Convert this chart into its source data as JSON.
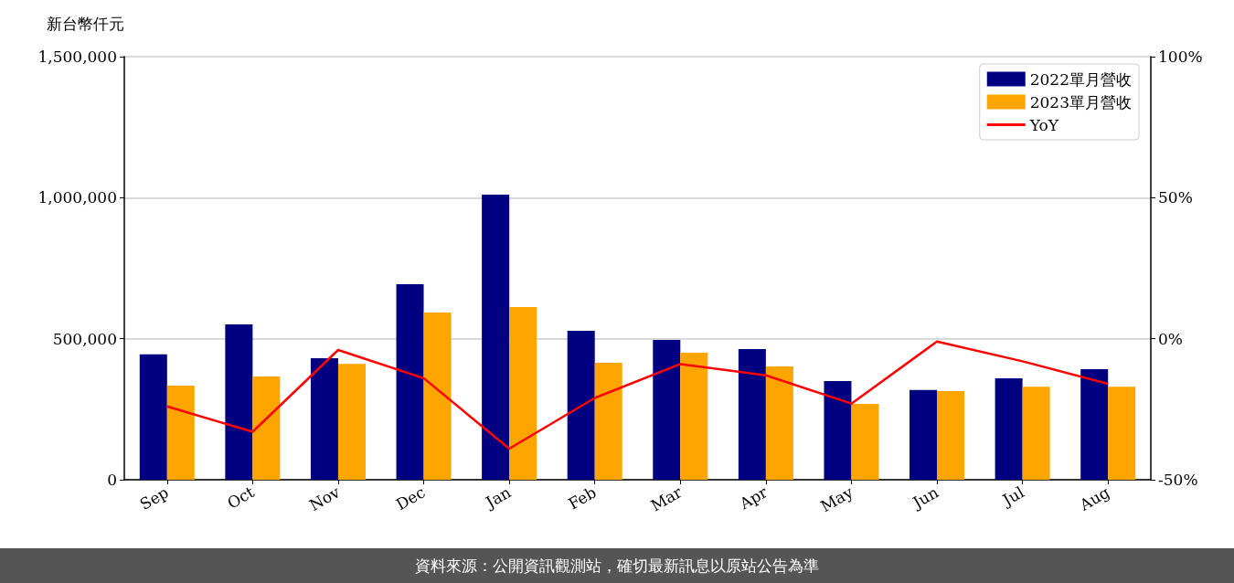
{
  "chart_data": {
    "type": "bar",
    "ylabel": "新台幣仟元",
    "categories": [
      "Sep",
      "Oct",
      "Nov",
      "Dec",
      "Jan",
      "Feb",
      "Mar",
      "Apr",
      "May",
      "Jun",
      "Jul",
      "Aug"
    ],
    "series": [
      {
        "name": "2022單月營收",
        "color": "#000080",
        "values": [
          445000,
          551000,
          431000,
          693000,
          1011000,
          528000,
          496000,
          463000,
          350000,
          318000,
          360000,
          392000
        ]
      },
      {
        "name": "2023單月營收",
        "color": "#ffa500",
        "values": [
          334000,
          366000,
          411000,
          593000,
          612000,
          415000,
          450000,
          402000,
          269000,
          314000,
          330000,
          330000
        ]
      },
      {
        "name": "YoY",
        "type": "line",
        "axis": "y2",
        "color": "#ff0000",
        "values": [
          -24,
          -33,
          -4,
          -14,
          -39,
          -21,
          -9,
          -13,
          -23,
          -1,
          -8,
          -16
        ]
      }
    ],
    "ylim": [
      0,
      1500000
    ],
    "yticks": [
      {
        "value": 0,
        "label": "0"
      },
      {
        "value": 500000,
        "label": "500,000"
      },
      {
        "value": 1000000,
        "label": "1,000,000"
      },
      {
        "value": 1500000,
        "label": "1,500,000"
      }
    ],
    "y2lim": [
      -50,
      100
    ],
    "y2ticks": [
      {
        "value": -50,
        "label": "-50%"
      },
      {
        "value": 0,
        "label": "0%"
      },
      {
        "value": 50,
        "label": "50%"
      },
      {
        "value": 100,
        "label": "100%"
      }
    ],
    "grid": "y",
    "legend": "top right",
    "annotations": [
      "資料來源：公開資訊觀測站，確切最新訊息以原站公告為準"
    ]
  }
}
